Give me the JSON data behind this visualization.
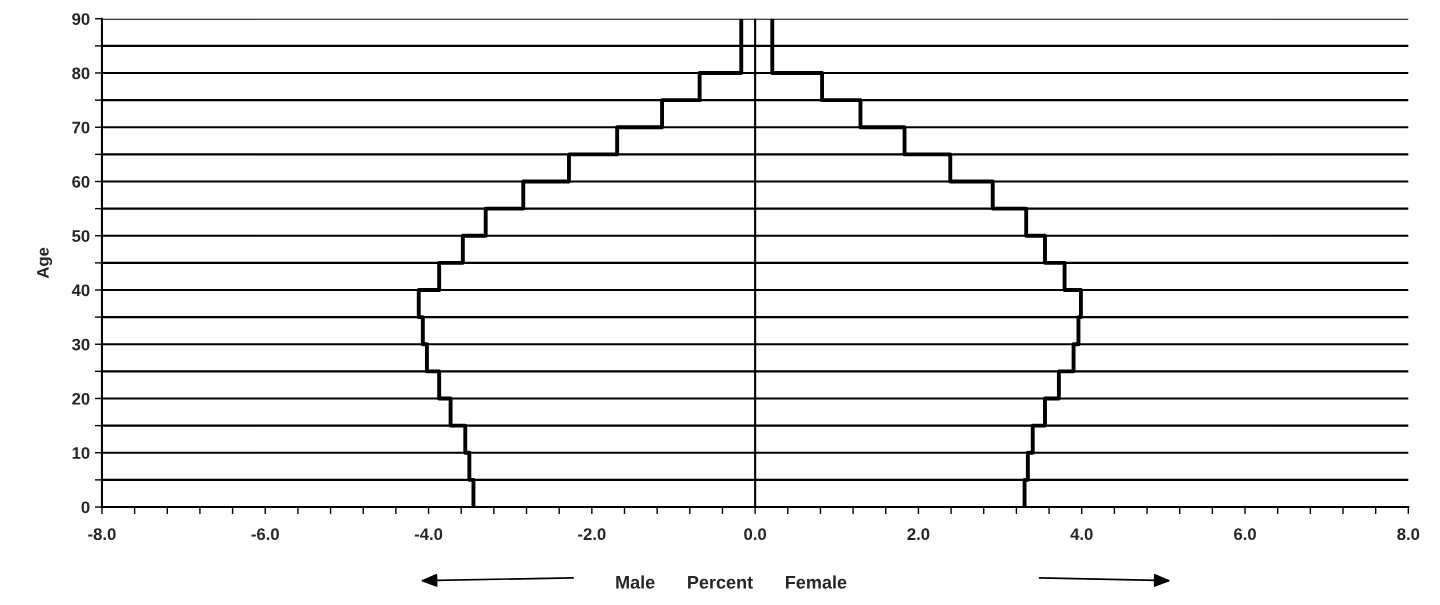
{
  "chart_data": {
    "type": "step",
    "orientation": "horizontal",
    "xlabel": "Percent",
    "ylabel": "Age",
    "x": [
      0,
      5,
      10,
      15,
      20,
      25,
      30,
      35,
      40,
      45,
      50,
      55,
      60,
      65,
      70,
      75,
      80,
      90
    ],
    "series": [
      {
        "color": "#000000",
        "values": [
          -3.45,
          -3.5,
          -3.55,
          -3.73,
          -3.87,
          -4.02,
          -4.07,
          -4.12,
          -3.87,
          -3.58,
          -3.3,
          -2.84,
          -2.28,
          -1.69,
          -1.14,
          -0.68,
          -0.17,
          -0.17
        ]
      },
      {
        "color": "#000000",
        "values": [
          3.3,
          3.34,
          3.4,
          3.55,
          3.72,
          3.9,
          3.96,
          3.99,
          3.79,
          3.55,
          3.32,
          2.91,
          2.39,
          1.83,
          1.29,
          0.82,
          0.21,
          0.21
        ]
      }
    ],
    "xlim": [
      -8,
      8
    ],
    "xticks": [
      {
        "value": -8,
        "label": "-8.0"
      },
      {
        "value": -7.6,
        "label": null
      },
      {
        "value": -7.2,
        "label": null
      },
      {
        "value": -6.8,
        "label": null
      },
      {
        "value": -6.4,
        "label": null
      },
      {
        "value": -6,
        "label": "-6.0"
      },
      {
        "value": -5.6,
        "label": null
      },
      {
        "value": -5.2,
        "label": null
      },
      {
        "value": -4.8,
        "label": null
      },
      {
        "value": -4.4,
        "label": null
      },
      {
        "value": -4,
        "label": "-4.0"
      },
      {
        "value": -3.6,
        "label": null
      },
      {
        "value": -3.2,
        "label": null
      },
      {
        "value": -2.8,
        "label": null
      },
      {
        "value": -2.4,
        "label": null
      },
      {
        "value": -2,
        "label": "-2.0"
      },
      {
        "value": -1.6,
        "label": null
      },
      {
        "value": -1.2,
        "label": null
      },
      {
        "value": -0.8,
        "label": null
      },
      {
        "value": -0.4,
        "label": null
      },
      {
        "value": 0,
        "label": "0.0"
      },
      {
        "value": 0.4,
        "label": null
      },
      {
        "value": 0.8,
        "label": null
      },
      {
        "value": 1.2,
        "label": null
      },
      {
        "value": 1.6,
        "label": null
      },
      {
        "value": 2,
        "label": "2.0"
      },
      {
        "value": 2.4,
        "label": null
      },
      {
        "value": 2.8,
        "label": null
      },
      {
        "value": 3.2,
        "label": null
      },
      {
        "value": 3.6,
        "label": null
      },
      {
        "value": 4,
        "label": "4.0"
      },
      {
        "value": 4.4,
        "label": null
      },
      {
        "value": 4.8,
        "label": null
      },
      {
        "value": 5.2,
        "label": null
      },
      {
        "value": 5.6,
        "label": null
      },
      {
        "value": 6,
        "label": "6.0"
      },
      {
        "value": 6.4,
        "label": null
      },
      {
        "value": 6.8,
        "label": null
      },
      {
        "value": 7.2,
        "label": null
      },
      {
        "value": 7.6,
        "label": null
      },
      {
        "value": 8,
        "label": "8.0"
      }
    ],
    "ylim": [
      0,
      90
    ],
    "yticks": [
      0,
      {
        "value": 5,
        "label": null
      },
      10,
      {
        "value": 15,
        "label": null
      },
      20,
      {
        "value": 25,
        "label": null
      },
      30,
      {
        "value": 35,
        "label": null
      },
      40,
      {
        "value": 45,
        "label": null
      },
      50,
      {
        "value": 55,
        "label": null
      },
      60,
      {
        "value": 65,
        "label": null
      },
      70,
      {
        "value": 75,
        "label": null
      },
      80,
      {
        "value": 85,
        "label": null
      },
      90
    ],
    "grid": "y",
    "ref_lines": [
      {
        "axis": "x",
        "value": 0,
        "color": "#000000"
      }
    ],
    "annotations": [
      "Male",
      "Female"
    ]
  }
}
